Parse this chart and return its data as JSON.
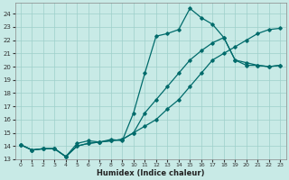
{
  "xlabel": "Humidex (Indice chaleur)",
  "background_color": "#c8eae6",
  "grid_color": "#9ecfca",
  "line_color": "#006b6b",
  "xlim": [
    -0.5,
    23.5
  ],
  "ylim": [
    13,
    24.8
  ],
  "yticks": [
    13,
    14,
    15,
    16,
    17,
    18,
    19,
    20,
    21,
    22,
    23,
    24
  ],
  "xticks": [
    0,
    1,
    2,
    3,
    4,
    5,
    6,
    7,
    8,
    9,
    10,
    11,
    12,
    13,
    14,
    15,
    16,
    17,
    18,
    19,
    20,
    21,
    22,
    23
  ],
  "line1_x": [
    0,
    1,
    2,
    3,
    4,
    5,
    6,
    7,
    8,
    9,
    10,
    11,
    12,
    13,
    14,
    15,
    16,
    17,
    18,
    19,
    20,
    21,
    22,
    23
  ],
  "line1_y": [
    14.1,
    13.7,
    13.8,
    13.8,
    13.2,
    14.2,
    14.4,
    14.3,
    14.5,
    14.4,
    16.5,
    19.5,
    22.3,
    22.5,
    22.8,
    24.4,
    23.7,
    23.2,
    22.2,
    20.5,
    20.1,
    20.1,
    20.0,
    20.1
  ],
  "line2_x": [
    0,
    1,
    2,
    3,
    4,
    5,
    6,
    7,
    8,
    9,
    10,
    11,
    12,
    13,
    14,
    15,
    16,
    17,
    18,
    19,
    20,
    21,
    22,
    23
  ],
  "line2_y": [
    14.1,
    13.7,
    13.8,
    13.8,
    13.2,
    14.0,
    14.2,
    14.3,
    14.4,
    14.5,
    15.0,
    15.5,
    16.0,
    16.8,
    17.5,
    18.5,
    19.5,
    20.5,
    21.0,
    21.5,
    22.0,
    22.5,
    22.8,
    22.9
  ],
  "line3_x": [
    0,
    1,
    2,
    3,
    4,
    5,
    6,
    7,
    8,
    9,
    10,
    11,
    12,
    13,
    14,
    15,
    16,
    17,
    18,
    19,
    20,
    21,
    22,
    23
  ],
  "line3_y": [
    14.1,
    13.7,
    13.8,
    13.8,
    13.2,
    14.0,
    14.2,
    14.3,
    14.4,
    14.5,
    15.0,
    16.5,
    17.5,
    18.5,
    19.5,
    20.5,
    21.2,
    21.8,
    22.2,
    20.5,
    20.3,
    20.1,
    20.0,
    20.1
  ]
}
